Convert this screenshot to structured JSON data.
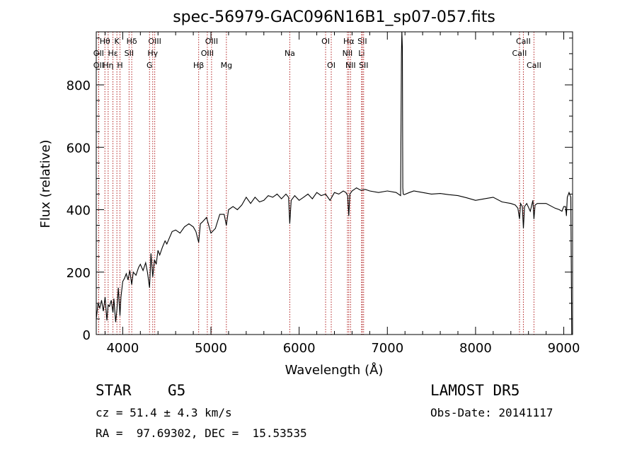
{
  "chart_data": {
    "type": "line",
    "title": "spec-56979-GAC096N16B1_sp07-057.fits",
    "xlabel": "Wavelength (Å)",
    "ylabel": "Flux (relative)",
    "xlim": [
      3700,
      9100
    ],
    "ylim": [
      0,
      970
    ],
    "xticks": [
      4000,
      5000,
      6000,
      7000,
      8000,
      9000
    ],
    "yticks": [
      0,
      200,
      400,
      600,
      800
    ],
    "grid": false,
    "line_color": "#000000",
    "marker_color": "#b22222",
    "line_markers": [
      {
        "label": "Hθ",
        "x": 3798,
        "row": 1
      },
      {
        "label": "OII",
        "x": 3727,
        "row": 2
      },
      {
        "label": "OII",
        "x": 3727,
        "row": 3
      },
      {
        "label": "K",
        "x": 3934,
        "row": 1
      },
      {
        "label": "Hε",
        "x": 3889,
        "row": 2
      },
      {
        "label": "Hη",
        "x": 3835,
        "row": 3
      },
      {
        "label": "H",
        "x": 3969,
        "row": 3
      },
      {
        "label": "Hδ",
        "x": 4102,
        "row": 1
      },
      {
        "label": "SII",
        "x": 4072,
        "row": 2
      },
      {
        "label": "OIII",
        "x": 4363,
        "row": 1
      },
      {
        "label": "Hγ",
        "x": 4340,
        "row": 2
      },
      {
        "label": "G",
        "x": 4304,
        "row": 3
      },
      {
        "label": "OIII",
        "x": 5007,
        "row": 1
      },
      {
        "label": "OIII",
        "x": 4959,
        "row": 2
      },
      {
        "label": "Hβ",
        "x": 4861,
        "row": 3
      },
      {
        "label": "Mg",
        "x": 5175,
        "row": 3
      },
      {
        "label": "Na",
        "x": 5894,
        "row": 2
      },
      {
        "label": "OI",
        "x": 6300,
        "row": 1
      },
      {
        "label": "OI",
        "x": 6364,
        "row": 3
      },
      {
        "label": "Hα",
        "x": 6563,
        "row": 1
      },
      {
        "label": "NII",
        "x": 6548,
        "row": 2
      },
      {
        "label": "NII",
        "x": 6583,
        "row": 3
      },
      {
        "label": "SII",
        "x": 6716,
        "row": 1
      },
      {
        "label": "Li",
        "x": 6708,
        "row": 2
      },
      {
        "label": "SII",
        "x": 6731,
        "row": 3
      },
      {
        "label": "CaII",
        "x": 8542,
        "row": 1
      },
      {
        "label": "CaII",
        "x": 8498,
        "row": 2
      },
      {
        "label": "CaII",
        "x": 8662,
        "row": 3
      }
    ],
    "series": [
      {
        "x": [
          3700,
          3720,
          3740,
          3760,
          3780,
          3800,
          3820,
          3835,
          3850,
          3870,
          3889,
          3900,
          3920,
          3934,
          3950,
          3969,
          3980,
          4000,
          4020,
          4040,
          4060,
          4080,
          4102,
          4120,
          4150,
          4180,
          4200,
          4230,
          4260,
          4280,
          4304,
          4320,
          4340,
          4360,
          4380,
          4400,
          4420,
          4450,
          4480,
          4500,
          4530,
          4560,
          4600,
          4650,
          4700,
          4750,
          4800,
          4830,
          4861,
          4880,
          4900,
          4950,
          5000,
          5050,
          5100,
          5150,
          5175,
          5200,
          5250,
          5300,
          5350,
          5400,
          5450,
          5500,
          5550,
          5600,
          5650,
          5700,
          5750,
          5800,
          5850,
          5880,
          5894,
          5910,
          5950,
          6000,
          6050,
          6100,
          6150,
          6200,
          6250,
          6300,
          6350,
          6400,
          6450,
          6500,
          6530,
          6550,
          6563,
          6575,
          6600,
          6650,
          6700,
          6750,
          6800,
          6900,
          7000,
          7100,
          7150,
          7160,
          7165,
          7170,
          7175,
          7180,
          7190,
          7250,
          7300,
          7400,
          7500,
          7600,
          7700,
          7800,
          7900,
          8000,
          8100,
          8200,
          8300,
          8400,
          8450,
          8480,
          8498,
          8510,
          8530,
          8542,
          8555,
          8580,
          8620,
          8650,
          8662,
          8675,
          8700,
          8800,
          8900,
          8950,
          8980,
          9000,
          9020,
          9030,
          9040,
          9060,
          9080,
          9090
        ],
        "y": [
          50,
          100,
          85,
          110,
          75,
          120,
          45,
          95,
          90,
          110,
          70,
          115,
          40,
          80,
          150,
          60,
          120,
          170,
          180,
          195,
          175,
          205,
          160,
          200,
          190,
          215,
          225,
          205,
          230,
          200,
          150,
          260,
          185,
          240,
          225,
          270,
          255,
          280,
          300,
          290,
          310,
          330,
          335,
          325,
          345,
          355,
          345,
          330,
          295,
          355,
          360,
          375,
          325,
          340,
          385,
          385,
          350,
          400,
          410,
          400,
          415,
          440,
          420,
          440,
          425,
          430,
          445,
          440,
          450,
          435,
          450,
          440,
          355,
          430,
          445,
          430,
          440,
          450,
          435,
          455,
          445,
          450,
          430,
          455,
          450,
          460,
          455,
          445,
          380,
          450,
          460,
          470,
          462,
          465,
          460,
          455,
          460,
          455,
          445,
          900,
          970,
          920,
          470,
          450,
          448,
          455,
          460,
          455,
          450,
          452,
          448,
          445,
          438,
          430,
          435,
          440,
          425,
          420,
          415,
          405,
          370,
          420,
          410,
          340,
          410,
          420,
          395,
          430,
          370,
          415,
          420,
          420,
          405,
          400,
          395,
          410,
          410,
          380,
          440,
          455,
          440,
          0
        ]
      }
    ],
    "footer": {
      "object_type": "STAR",
      "subclass": "G5",
      "survey": "LAMOST DR5",
      "cz": "cz = 51.4 ± 4.3 km/s",
      "obs_date": "Obs-Date: 20141117",
      "coords": "RA =  97.69302, DEC =  15.53535"
    }
  }
}
